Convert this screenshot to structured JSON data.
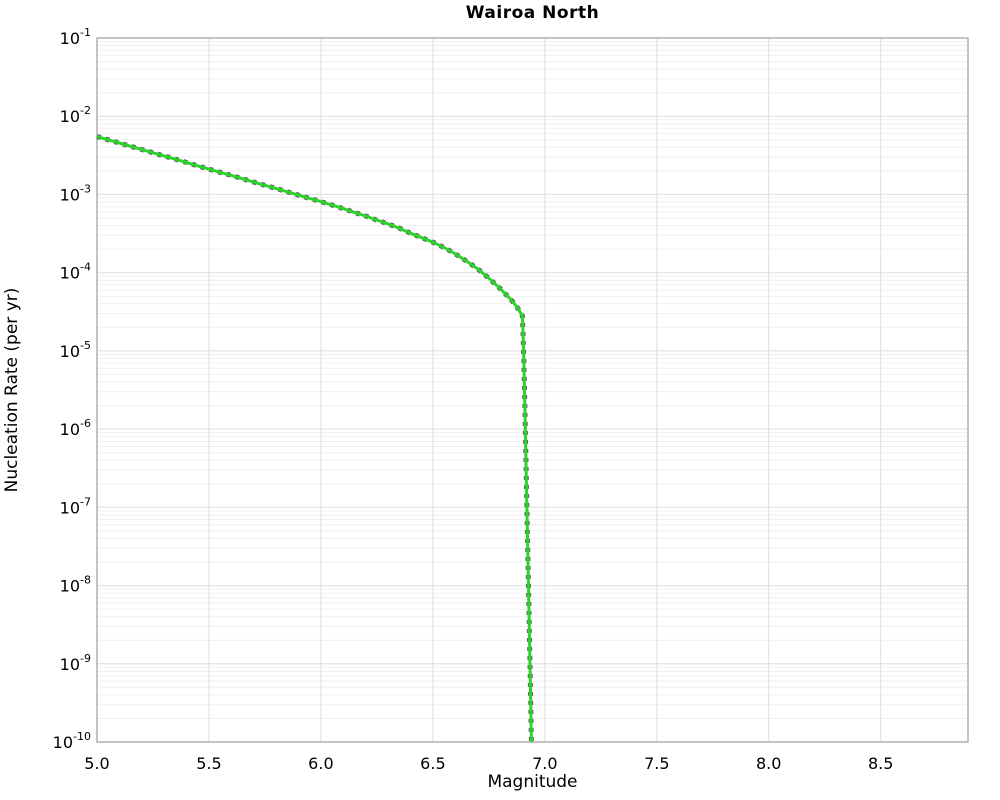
{
  "chart_data": {
    "type": "line",
    "title": "Wairoa North",
    "xlabel": "Magnitude",
    "ylabel": "Nucleation Rate (per yr)",
    "xlim": [
      5.0,
      8.89
    ],
    "ylim": [
      1e-10,
      0.1
    ],
    "ylim_exponents": [
      -10,
      -1
    ],
    "yscale": "log",
    "grid": "major and minor log gridlines on",
    "legend_position": "none",
    "x_ticks": [
      5.0,
      5.5,
      6.0,
      6.5,
      7.0,
      7.5,
      8.0,
      8.5
    ],
    "x_tick_labels": [
      "5.0",
      "5.5",
      "6.0",
      "6.5",
      "7.0",
      "7.5",
      "8.0",
      "8.5"
    ],
    "y_tick_exponents": [
      -1,
      -2,
      -3,
      -4,
      -5,
      -6,
      -7,
      -8,
      -9,
      -10
    ],
    "y_tick_labels": [
      "10^-1",
      "10^-2",
      "10^-3",
      "10^-4",
      "10^-5",
      "10^-6",
      "10^-7",
      "10^-8",
      "10^-9",
      "10^-10"
    ],
    "series": [
      {
        "name": "nucleation-rate-dashed-underlay",
        "style": "dashed",
        "color": "#646464"
      },
      {
        "name": "nucleation-rate-solid",
        "style": "solid",
        "color": "#2bd42b"
      }
    ],
    "series_note": "both series overlap on identical points",
    "points": [
      [
        5.0,
        0.0055
      ],
      [
        5.05,
        0.005
      ],
      [
        5.1,
        0.00454
      ],
      [
        5.15,
        0.00412
      ],
      [
        5.2,
        0.00375
      ],
      [
        5.25,
        0.00341
      ],
      [
        5.3,
        0.0031
      ],
      [
        5.35,
        0.00282
      ],
      [
        5.4,
        0.00256
      ],
      [
        5.45,
        0.00232
      ],
      [
        5.5,
        0.00211
      ],
      [
        5.55,
        0.00192
      ],
      [
        5.6,
        0.00175
      ],
      [
        5.65,
        0.00159
      ],
      [
        5.7,
        0.00144
      ],
      [
        5.75,
        0.00131
      ],
      [
        5.8,
        0.00119
      ],
      [
        5.85,
        0.00108
      ],
      [
        5.9,
        0.00098
      ],
      [
        5.95,
        0.00089
      ],
      [
        6.0,
        0.00081
      ],
      [
        6.05,
        0.00073
      ],
      [
        6.1,
        0.00066
      ],
      [
        6.15,
        0.00059
      ],
      [
        6.2,
        0.00053
      ],
      [
        6.25,
        0.00047
      ],
      [
        6.3,
        0.00042
      ],
      [
        6.35,
        0.00037
      ],
      [
        6.4,
        0.00032
      ],
      [
        6.45,
        0.00028
      ],
      [
        6.5,
        0.000245
      ],
      [
        6.55,
        0.00021
      ],
      [
        6.6,
        0.000174
      ],
      [
        6.65,
        0.000141
      ],
      [
        6.7,
        0.000112
      ],
      [
        6.75,
        8.5e-05
      ],
      [
        6.8,
        6.3e-05
      ],
      [
        6.85,
        4.5e-05
      ],
      [
        6.88,
        3.5e-05
      ],
      [
        6.9,
        2.8e-05
      ],
      [
        6.903,
        1.6e-05
      ],
      [
        6.906,
        7.9e-06
      ],
      [
        6.91,
        2.5e-06
      ],
      [
        6.915,
        5e-07
      ],
      [
        6.92,
        1e-07
      ],
      [
        6.925,
        2e-08
      ],
      [
        6.93,
        4e-09
      ],
      [
        6.935,
        6.3e-10
      ],
      [
        6.94,
        1e-10
      ]
    ]
  },
  "colors": {
    "background": "#ffffff",
    "line_green": "#2bd42b",
    "line_dash_gray": "#646464",
    "grid_major": "#dedede",
    "grid_minor": "#efefef",
    "spine": "#b0b0b0",
    "text": "#000000"
  }
}
